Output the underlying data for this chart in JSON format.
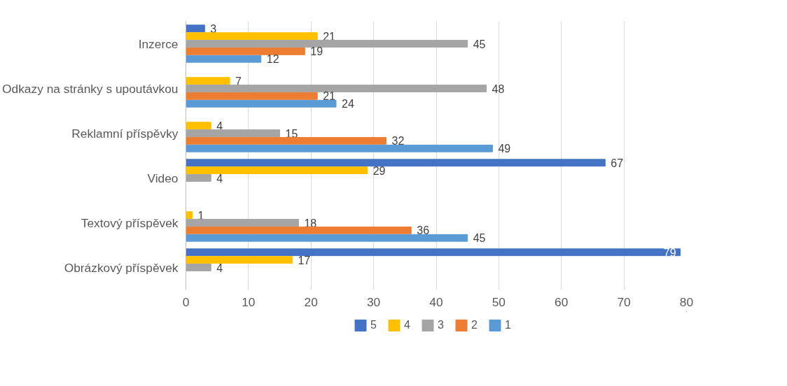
{
  "chart_data": {
    "type": "bar",
    "orientation": "horizontal",
    "categories": [
      "Inzerce",
      "Odkazy na stránky s upoutávkou",
      "Reklamní příspěvky",
      "Video",
      "Textový příspěvek",
      "Obrázkový příspěvek"
    ],
    "series": [
      {
        "name": "5",
        "color": "#4472c4",
        "values": [
          3,
          null,
          null,
          67,
          null,
          79
        ]
      },
      {
        "name": "4",
        "color": "#ffc000",
        "values": [
          21,
          7,
          4,
          29,
          1,
          17
        ]
      },
      {
        "name": "3",
        "color": "#a5a5a5",
        "values": [
          45,
          48,
          15,
          4,
          18,
          4
        ]
      },
      {
        "name": "2",
        "color": "#ed7d31",
        "values": [
          19,
          21,
          32,
          null,
          36,
          null
        ]
      },
      {
        "name": "1",
        "color": "#5b9bd5",
        "values": [
          12,
          24,
          49,
          null,
          45,
          null
        ]
      }
    ],
    "xlim": [
      0,
      80
    ],
    "xticks": [
      0,
      10,
      20,
      30,
      40,
      50,
      60,
      70,
      80
    ],
    "grid": "x",
    "legend": "bottom",
    "data_labels": true
  }
}
